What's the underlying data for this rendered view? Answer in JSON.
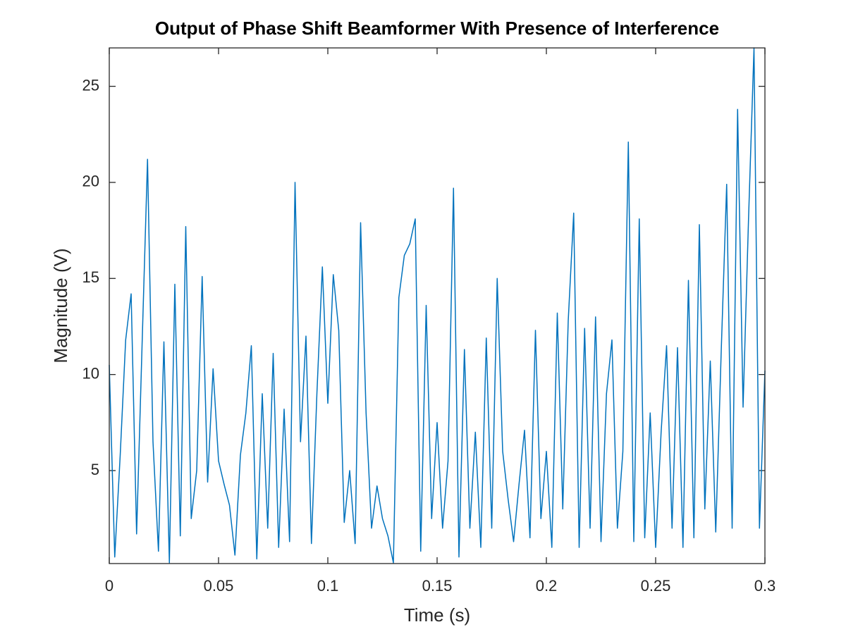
{
  "chart_data": {
    "type": "line",
    "title": "Output of Phase Shift Beamformer With Presence of Interference",
    "x_label": "Time (s)",
    "y_label": "Magnitude (V)",
    "x": [
      0,
      0.0025,
      0.005,
      0.0075,
      0.01,
      0.0125,
      0.015,
      0.0175,
      0.02,
      0.0225,
      0.025,
      0.0275,
      0.03,
      0.0325,
      0.035,
      0.0375,
      0.04,
      0.0425,
      0.045,
      0.0475,
      0.05,
      0.0525,
      0.055,
      0.0575,
      0.06,
      0.0625,
      0.065,
      0.0675,
      0.07,
      0.0725,
      0.075,
      0.0775,
      0.08,
      0.0825,
      0.085,
      0.0875,
      0.09,
      0.0925,
      0.095,
      0.0975,
      0.1,
      0.1025,
      0.105,
      0.1075,
      0.11,
      0.1125,
      0.115,
      0.1175,
      0.12,
      0.1225,
      0.125,
      0.1275,
      0.13,
      0.1325,
      0.135,
      0.1375,
      0.14,
      0.1425,
      0.145,
      0.1475,
      0.15,
      0.1525,
      0.155,
      0.1575,
      0.16,
      0.1625,
      0.165,
      0.1675,
      0.17,
      0.1725,
      0.175,
      0.1775,
      0.18,
      0.1825,
      0.185,
      0.1875,
      0.19,
      0.1925,
      0.195,
      0.1975,
      0.2,
      0.2025,
      0.205,
      0.2075,
      0.21,
      0.2125,
      0.215,
      0.2175,
      0.22,
      0.2225,
      0.225,
      0.2275,
      0.23,
      0.2325,
      0.235,
      0.2375,
      0.24,
      0.2425,
      0.245,
      0.2475,
      0.25,
      0.2525,
      0.255,
      0.2575,
      0.26,
      0.2625,
      0.265,
      0.2675,
      0.27,
      0.2725,
      0.275,
      0.2775,
      0.28,
      0.2825,
      0.285,
      0.2875,
      0.29,
      0.2925,
      0.295,
      0.2975,
      0.3
    ],
    "series": [
      {
        "color": "#0072bd",
        "values": [
          10.5,
          0.5,
          5.8,
          11.8,
          14.2,
          1.7,
          11.5,
          21.2,
          6.5,
          0.8,
          11.7,
          0.2,
          14.7,
          1.6,
          17.7,
          2.5,
          5.0,
          15.1,
          4.4,
          10.3,
          5.5,
          4.3,
          3.2,
          0.6,
          5.8,
          8.0,
          11.5,
          0.4,
          9.0,
          2.0,
          11.1,
          1.0,
          8.2,
          1.3,
          20.0,
          6.5,
          12.0,
          1.2,
          9.0,
          15.6,
          8.5,
          15.2,
          12.3,
          2.3,
          5.0,
          1.2,
          17.9,
          8.0,
          2.0,
          4.2,
          2.5,
          1.6,
          0.2,
          14.0,
          16.2,
          16.8,
          18.1,
          0.8,
          13.6,
          2.5,
          7.5,
          2.0,
          5.5,
          19.7,
          0.5,
          11.3,
          2.0,
          7.0,
          1.0,
          11.9,
          2.0,
          15.0,
          6.0,
          3.5,
          1.3,
          4.3,
          7.1,
          1.5,
          12.3,
          2.5,
          6.0,
          1.0,
          13.2,
          3.0,
          12.8,
          18.4,
          1.0,
          12.4,
          2.0,
          13.0,
          1.3,
          9.0,
          11.8,
          2.0,
          6.0,
          22.1,
          1.3,
          18.1,
          1.5,
          8.0,
          1.0,
          7.0,
          11.5,
          2.0,
          11.4,
          1.0,
          14.9,
          1.5,
          17.8,
          3.0,
          10.7,
          1.8,
          11.2,
          19.9,
          2.0,
          23.8,
          8.3,
          18.1,
          27.0,
          2.0,
          10.2
        ]
      }
    ],
    "xlim": [
      0,
      0.3
    ],
    "ylim": [
      0.16,
      27.0
    ],
    "xticks": [
      0,
      0.05,
      0.1,
      0.15,
      0.2,
      0.25,
      0.3
    ],
    "yticks": [
      5,
      10,
      15,
      20,
      25
    ]
  }
}
